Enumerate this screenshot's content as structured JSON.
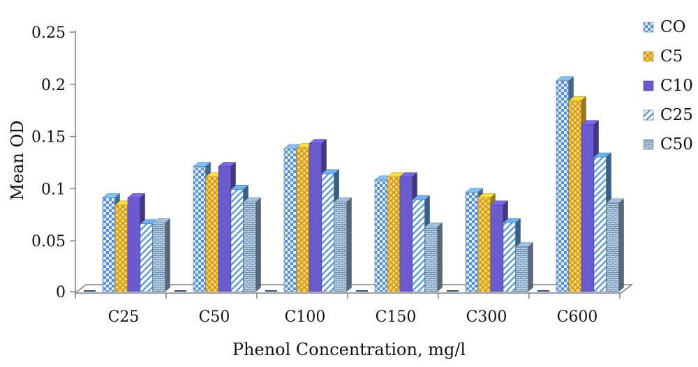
{
  "chart_data": {
    "type": "bar",
    "style": "3d-clustered-column",
    "xlabel": "Phenol Concentration, mg/l",
    "ylabel": "Mean OD",
    "ylim": [
      0,
      0.25
    ],
    "yticks": [
      "0",
      "0.05",
      "0.1",
      "0.15",
      "0.2",
      "0.25"
    ],
    "categories": [
      "C25",
      "C50",
      "C100",
      "C150",
      "C300",
      "C600"
    ],
    "legend_position": "right",
    "grid": false,
    "series": [
      {
        "name": "CO",
        "values": [
          0.09,
          0.12,
          0.137,
          0.107,
          0.095,
          0.202
        ],
        "color": "#6fa8dc",
        "pattern": "checker"
      },
      {
        "name": "C5",
        "values": [
          0.083,
          0.11,
          0.138,
          0.11,
          0.09,
          0.183
        ],
        "color": "#f1c232",
        "pattern": "crosshatch"
      },
      {
        "name": "C10",
        "values": [
          0.09,
          0.12,
          0.142,
          0.11,
          0.083,
          0.16
        ],
        "color": "#6a5acd",
        "pattern": "solid"
      },
      {
        "name": "C25",
        "values": [
          0.065,
          0.098,
          0.113,
          0.088,
          0.066,
          0.129
        ],
        "color": "#5b9bd5",
        "pattern": "diagonal"
      },
      {
        "name": "C50",
        "values": [
          0.066,
          0.086,
          0.086,
          0.062,
          0.043,
          0.085
        ],
        "color": "#8aa8c4",
        "pattern": "brick"
      }
    ]
  }
}
